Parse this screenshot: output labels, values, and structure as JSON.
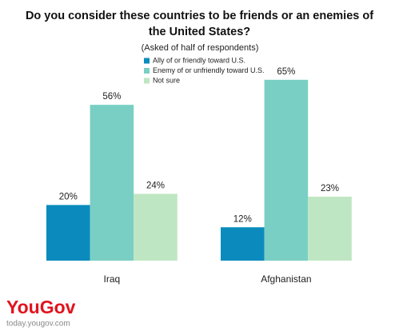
{
  "chart_data": {
    "type": "bar",
    "title": "Do you consider these countries to be friends or an enemies of the United States?",
    "subtitle": "(Asked of half of respondents)",
    "categories": [
      "Iraq",
      "Afghanistan"
    ],
    "series": [
      {
        "name": "Ally of or friendly toward U.S.",
        "color": "#0b8bbd",
        "values": [
          20,
          12
        ],
        "value_labels": [
          "20%",
          "12%"
        ]
      },
      {
        "name": "Enemy of or unfriendly toward U.S.",
        "color": "#79cfc3",
        "values": [
          56,
          65
        ],
        "value_labels": [
          "56%",
          "65%"
        ]
      },
      {
        "name": "Not sure",
        "color": "#bfe6c3",
        "values": [
          24,
          23
        ],
        "value_labels": [
          "24%",
          "23%"
        ]
      }
    ]
  },
  "brand": {
    "logo": "YouGov",
    "url": "today.yougov.com"
  }
}
